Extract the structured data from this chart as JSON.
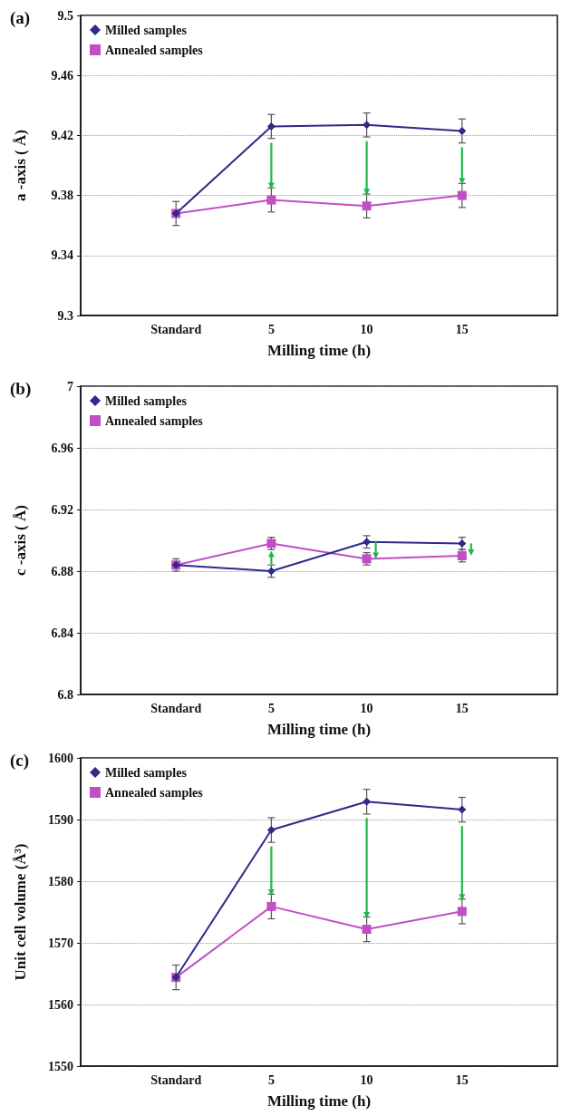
{
  "chart_data": [
    {
      "type": "line",
      "title": "(a)",
      "xlabel": "Milling time (h)",
      "ylabel": "a -axis ( Å)",
      "categories": [
        null,
        "Standard",
        "5",
        "10",
        "15",
        null
      ],
      "ylim": [
        9.3,
        9.5
      ],
      "yticks": [
        9.3,
        9.34,
        9.38,
        9.42,
        9.46,
        9.5
      ],
      "grid": "y",
      "legend": "top left",
      "line_style": "solid",
      "series": [
        {
          "name": "Milled samples",
          "color": "#2e2a8a",
          "marker": "diamond",
          "values": [
            null,
            9.368,
            9.426,
            9.427,
            9.423,
            null
          ],
          "errors": [
            null,
            0.008,
            0.008,
            0.008,
            0.008,
            null
          ]
        },
        {
          "name": "Annealed samples",
          "color": "#c04fc4",
          "marker": "square",
          "values": [
            null,
            9.368,
            9.377,
            9.373,
            9.38,
            null
          ],
          "errors": [
            null,
            null,
            0.008,
            0.008,
            0.008,
            null
          ]
        }
      ]
    },
    {
      "type": "line",
      "title": "(b)",
      "xlabel": "Milling time (h)",
      "ylabel": "c -axis ( Å)",
      "categories": [
        null,
        "Standard",
        "5",
        "10",
        "15",
        null
      ],
      "ylim": [
        6.8,
        7
      ],
      "yticks": [
        6.8,
        6.84,
        6.88,
        6.92,
        6.96,
        7
      ],
      "grid": "y",
      "legend": "top left",
      "line_style": "solid",
      "series": [
        {
          "name": "Milled samples",
          "color": "#2e2a8a",
          "marker": "diamond",
          "values": [
            null,
            6.884,
            6.88,
            6.899,
            6.898,
            null
          ],
          "errors": [
            null,
            0.004,
            0.004,
            0.004,
            0.004,
            null
          ]
        },
        {
          "name": "Annealed samples",
          "color": "#c04fc4",
          "marker": "square",
          "values": [
            null,
            6.884,
            6.898,
            6.888,
            6.89,
            null
          ],
          "errors": [
            null,
            null,
            0.004,
            0.004,
            0.004,
            null
          ]
        }
      ]
    },
    {
      "type": "line",
      "title": "(c)",
      "xlabel": "Milling time (h)",
      "ylabel": "Unit cell volume (Å³)",
      "categories": [
        null,
        "Standard",
        "5",
        "10",
        "15",
        null
      ],
      "ylim": [
        1550,
        1600
      ],
      "yticks": [
        1550,
        1560,
        1570,
        1580,
        1590,
        1600
      ],
      "grid": "y",
      "legend": "top left",
      "line_style": "solid",
      "series": [
        {
          "name": "Milled samples",
          "color": "#2e2a8a",
          "marker": "diamond",
          "values": [
            null,
            1564.4,
            1588.3,
            1592.9,
            1591.6,
            null
          ],
          "errors": [
            null,
            2,
            2,
            2,
            2,
            null
          ]
        },
        {
          "name": "Annealed samples",
          "color": "#c04fc4",
          "marker": "square",
          "values": [
            null,
            1564.4,
            1575.9,
            1572.2,
            1575.1,
            null
          ],
          "errors": [
            null,
            null,
            2,
            2,
            2,
            null
          ]
        }
      ]
    }
  ]
}
